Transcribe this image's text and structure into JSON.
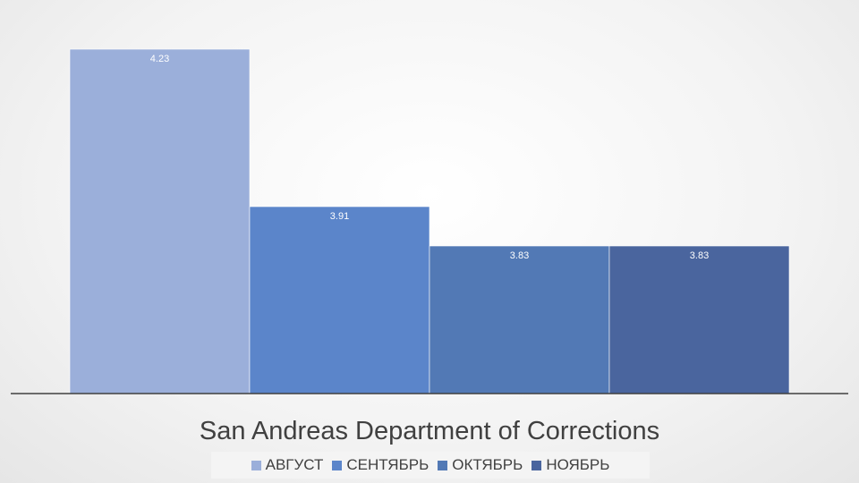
{
  "chart_data": {
    "type": "bar",
    "category_label": "San Andreas Department of Corrections",
    "series": [
      {
        "name": "АВГУСТ",
        "value": 4.23,
        "color": "#9BAFDA"
      },
      {
        "name": "СЕНТЯБРЬ",
        "value": 3.91,
        "color": "#5B85CA"
      },
      {
        "name": "ОКТЯБРЬ",
        "value": 3.83,
        "color": "#5279B5"
      },
      {
        "name": "НОЯБРЬ",
        "value": 3.83,
        "color": "#4A659E"
      }
    ],
    "value_labels": [
      "4.23",
      "3.91",
      "3.83",
      "3.83"
    ],
    "axis_baseline": 3.53,
    "legend_position": "bottom",
    "grid": false
  }
}
